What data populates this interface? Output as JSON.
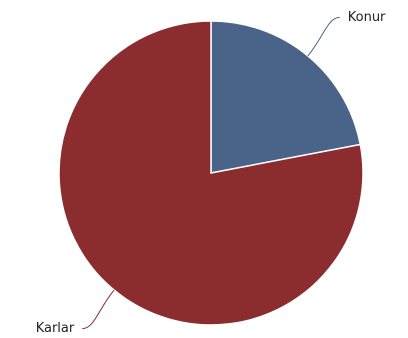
{
  "chart_data": {
    "type": "pie",
    "categories": [
      "Konur",
      "Karlar"
    ],
    "values": [
      22,
      78
    ],
    "colors": [
      "#4a6389",
      "#8b2d2e"
    ]
  }
}
